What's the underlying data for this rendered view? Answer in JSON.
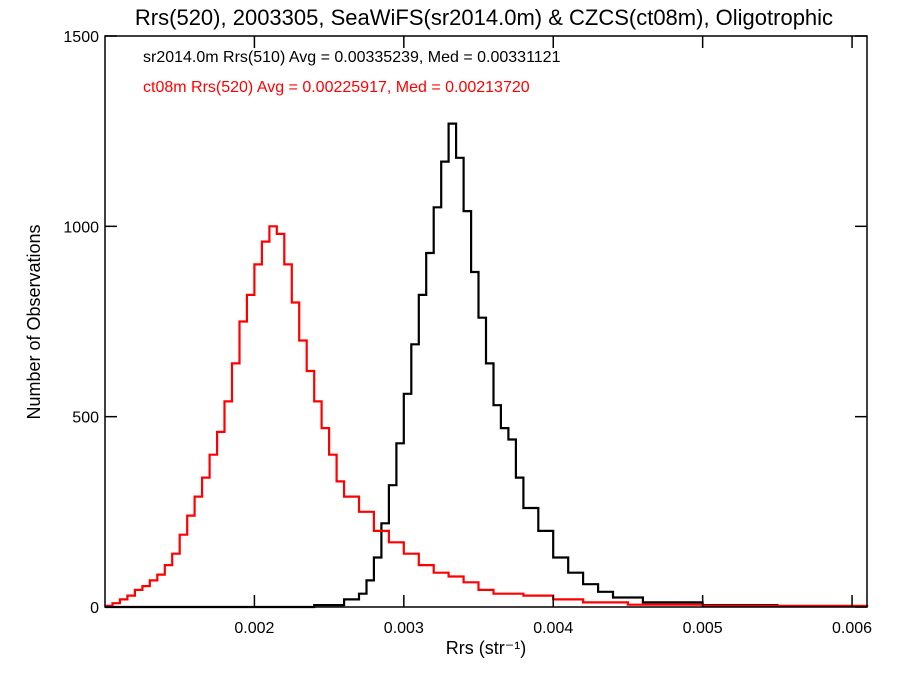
{
  "chart_data": {
    "type": "line",
    "title": "Rrs(520), 2003305, SeaWiFS(sr2014.0m) & CZCS(ct08m), Oligotrophic",
    "xlabel": "Rrs (str⁻¹)",
    "ylabel": "Number of Observations",
    "xlim": [
      0.001,
      0.0061
    ],
    "ylim": [
      0,
      1500
    ],
    "xticks": [
      0.002,
      0.003,
      0.004,
      0.005,
      0.006
    ],
    "xtick_labels": [
      "0.002",
      "0.003",
      "0.004",
      "0.005",
      "0.006"
    ],
    "yticks": [
      0,
      500,
      1000,
      1500
    ],
    "ytick_labels": [
      "0",
      "500",
      "1000",
      "1500"
    ],
    "grid": false,
    "legend_position": "top-left",
    "annotations": [
      {
        "text": "sr2014.0m Rrs(510) Avg = 0.00335239, Med = 0.00331121",
        "color": "#000000"
      },
      {
        "text": "ct08m Rrs(520) Avg = 0.00225917, Med = 0.00213720",
        "color": "#ff0000"
      }
    ],
    "series": [
      {
        "color": "#000000",
        "x": [
          0.001,
          0.002,
          0.0024,
          0.0026,
          0.0027,
          0.00275,
          0.0028,
          0.00285,
          0.0029,
          0.00295,
          0.003,
          0.00305,
          0.0031,
          0.00315,
          0.0032,
          0.00325,
          0.0033,
          0.00335,
          0.0034,
          0.00345,
          0.0035,
          0.00355,
          0.0036,
          0.00365,
          0.0037,
          0.00375,
          0.0038,
          0.0039,
          0.004,
          0.0041,
          0.0042,
          0.0043,
          0.0044,
          0.0046,
          0.005,
          0.0055,
          0.0061
        ],
        "y": [
          0,
          0,
          5,
          20,
          35,
          70,
          130,
          220,
          320,
          430,
          560,
          690,
          820,
          930,
          1050,
          1170,
          1270,
          1180,
          1040,
          880,
          760,
          640,
          530,
          470,
          440,
          340,
          260,
          200,
          130,
          90,
          60,
          40,
          25,
          12,
          5,
          2,
          0
        ]
      },
      {
        "color": "#ff0000",
        "x": [
          0.001,
          0.00105,
          0.0011,
          0.00115,
          0.0012,
          0.00125,
          0.0013,
          0.00135,
          0.0014,
          0.00145,
          0.0015,
          0.00155,
          0.0016,
          0.00165,
          0.0017,
          0.00175,
          0.0018,
          0.00185,
          0.0019,
          0.00195,
          0.002,
          0.00205,
          0.0021,
          0.00215,
          0.0022,
          0.00225,
          0.0023,
          0.00235,
          0.0024,
          0.00245,
          0.0025,
          0.00255,
          0.0026,
          0.0027,
          0.0028,
          0.0029,
          0.003,
          0.0031,
          0.0032,
          0.0033,
          0.0034,
          0.0035,
          0.0036,
          0.0038,
          0.004,
          0.0042,
          0.0045,
          0.005,
          0.0061
        ],
        "y": [
          3,
          10,
          20,
          30,
          45,
          55,
          70,
          85,
          110,
          140,
          190,
          240,
          290,
          340,
          400,
          460,
          540,
          640,
          750,
          820,
          900,
          960,
          1000,
          980,
          900,
          800,
          700,
          620,
          540,
          470,
          400,
          330,
          290,
          250,
          200,
          170,
          140,
          110,
          90,
          80,
          65,
          45,
          35,
          30,
          20,
          12,
          6,
          3,
          0
        ]
      }
    ]
  }
}
